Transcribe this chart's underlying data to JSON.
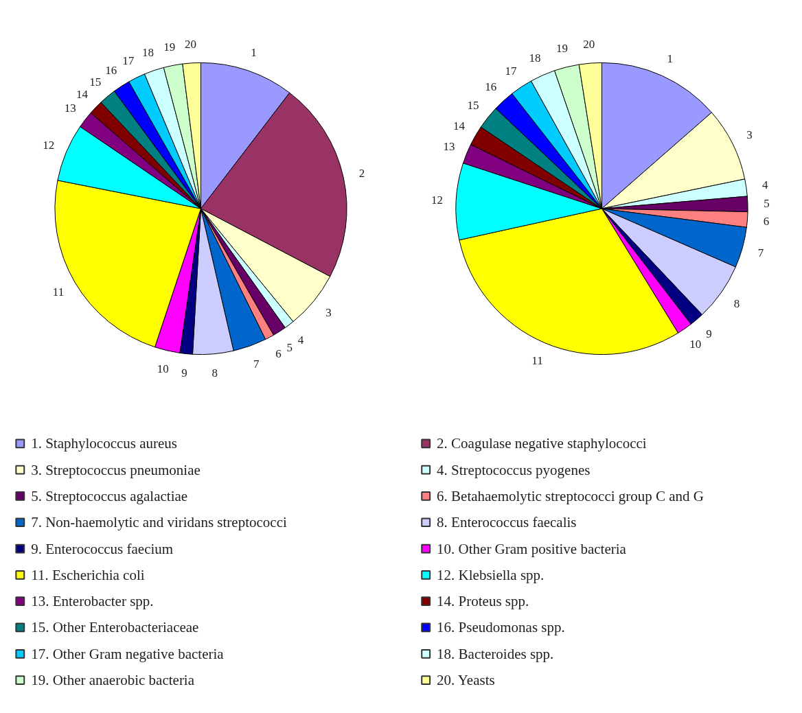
{
  "chart_data": [
    {
      "type": "pie",
      "legend": "bottom",
      "categories": [
        "1. Staphylococcus aureus",
        "2. Coagulase negative staphylococci",
        "3. Streptococcus pneumoniae",
        "4. Streptococcus pyogenes",
        "5. Streptococcus agalactiae",
        "6. Betahaemolytic streptococci group C and G",
        "7. Non-haemolytic and viridans streptococci",
        "8. Enterococcus faecalis",
        "9. Enterococcus faecium",
        "10. Other Gram positive bacteria",
        "11. Escherichia coli",
        "12. Klebsiella spp.",
        "13. Enterobacter spp.",
        "14. Proteus spp.",
        "15. Other Enterobacteriaceae",
        "16. Pseudomonas spp.",
        "17. Other Gram negative bacteria",
        "18. Bacteroides spp.",
        "19. Other anaerobic bacteria",
        "20. Yeasts"
      ],
      "values": [
        10.4,
        22.3,
        6.4,
        1.1,
        1.5,
        1.0,
        3.7,
        4.5,
        1.4,
        2.8,
        23.0,
        6.4,
        1.9,
        1.6,
        1.9,
        1.9,
        1.9,
        2.2,
        2.1,
        2.0
      ],
      "annotations": [
        {
          "text": "1",
          "x": "1. Staphylococcus aureus"
        },
        {
          "text": "2",
          "x": "2. Coagulase negative staphylococci"
        },
        {
          "text": "3",
          "x": "3. Streptococcus pneumoniae"
        },
        {
          "text": "4",
          "x": "4. Streptococcus pyogenes"
        },
        {
          "text": "5",
          "x": "5. Streptococcus agalactiae"
        },
        {
          "text": "6",
          "x": "6. Betahaemolytic streptococci group C and G"
        },
        {
          "text": "7",
          "x": "7. Non-haemolytic and viridans streptococci"
        },
        {
          "text": "8",
          "x": "8. Enterococcus faecalis"
        },
        {
          "text": "9",
          "x": "9. Enterococcus faecium"
        },
        {
          "text": "10",
          "x": "10. Other Gram positive bacteria"
        },
        {
          "text": "11",
          "x": "11. Escherichia coli"
        },
        {
          "text": "12",
          "x": "12. Klebsiella spp."
        },
        {
          "text": "13",
          "x": "13. Enterobacter spp."
        },
        {
          "text": "14",
          "x": "14. Proteus spp."
        },
        {
          "text": "15",
          "x": "15. Other Enterobacteriaceae"
        },
        {
          "text": "16",
          "x": "16. Pseudomonas spp."
        },
        {
          "text": "17",
          "x": "17. Other Gram negative bacteria"
        },
        {
          "text": "18",
          "x": "18. Bacteroides spp."
        },
        {
          "text": "19",
          "x": "19. Other anaerobic bacteria"
        },
        {
          "text": "20",
          "x": "20. Yeasts"
        }
      ],
      "colors": [
        "#9999ff",
        "#993366",
        "#ffffcc",
        "#ccffff",
        "#660066",
        "#ff8080",
        "#0066cc",
        "#ccccff",
        "#000080",
        "#ff00ff",
        "#ffff00",
        "#00ffff",
        "#800080",
        "#800000",
        "#008080",
        "#0000ff",
        "#00ccff",
        "#ccffff",
        "#ccffcc",
        "#ffff99"
      ]
    },
    {
      "type": "pie",
      "categories": [
        "1",
        null,
        "3",
        "4",
        "5",
        "6",
        "7",
        "8",
        "9",
        "10",
        "11",
        "12",
        "13",
        "14",
        "15",
        "16",
        "17",
        "18",
        "19",
        "20"
      ],
      "values": [
        13.55,
        0,
        8.2,
        1.9,
        1.7,
        1.7,
        4.5,
        6.4,
        1.6,
        1.7,
        30.3,
        8.5,
        2.2,
        2.2,
        2.6,
        2.4,
        2.5,
        2.8,
        2.75,
        2.5
      ],
      "colors": [
        "#9999ff",
        "#993366",
        "#ffffcc",
        "#ccffff",
        "#660066",
        "#ff8080",
        "#0066cc",
        "#ccccff",
        "#000080",
        "#ff00ff",
        "#ffff00",
        "#00ffff",
        "#800080",
        "#800000",
        "#008080",
        "#0000ff",
        "#00ccff",
        "#ccffff",
        "#ccffcc",
        "#ffff99"
      ]
    }
  ]
}
